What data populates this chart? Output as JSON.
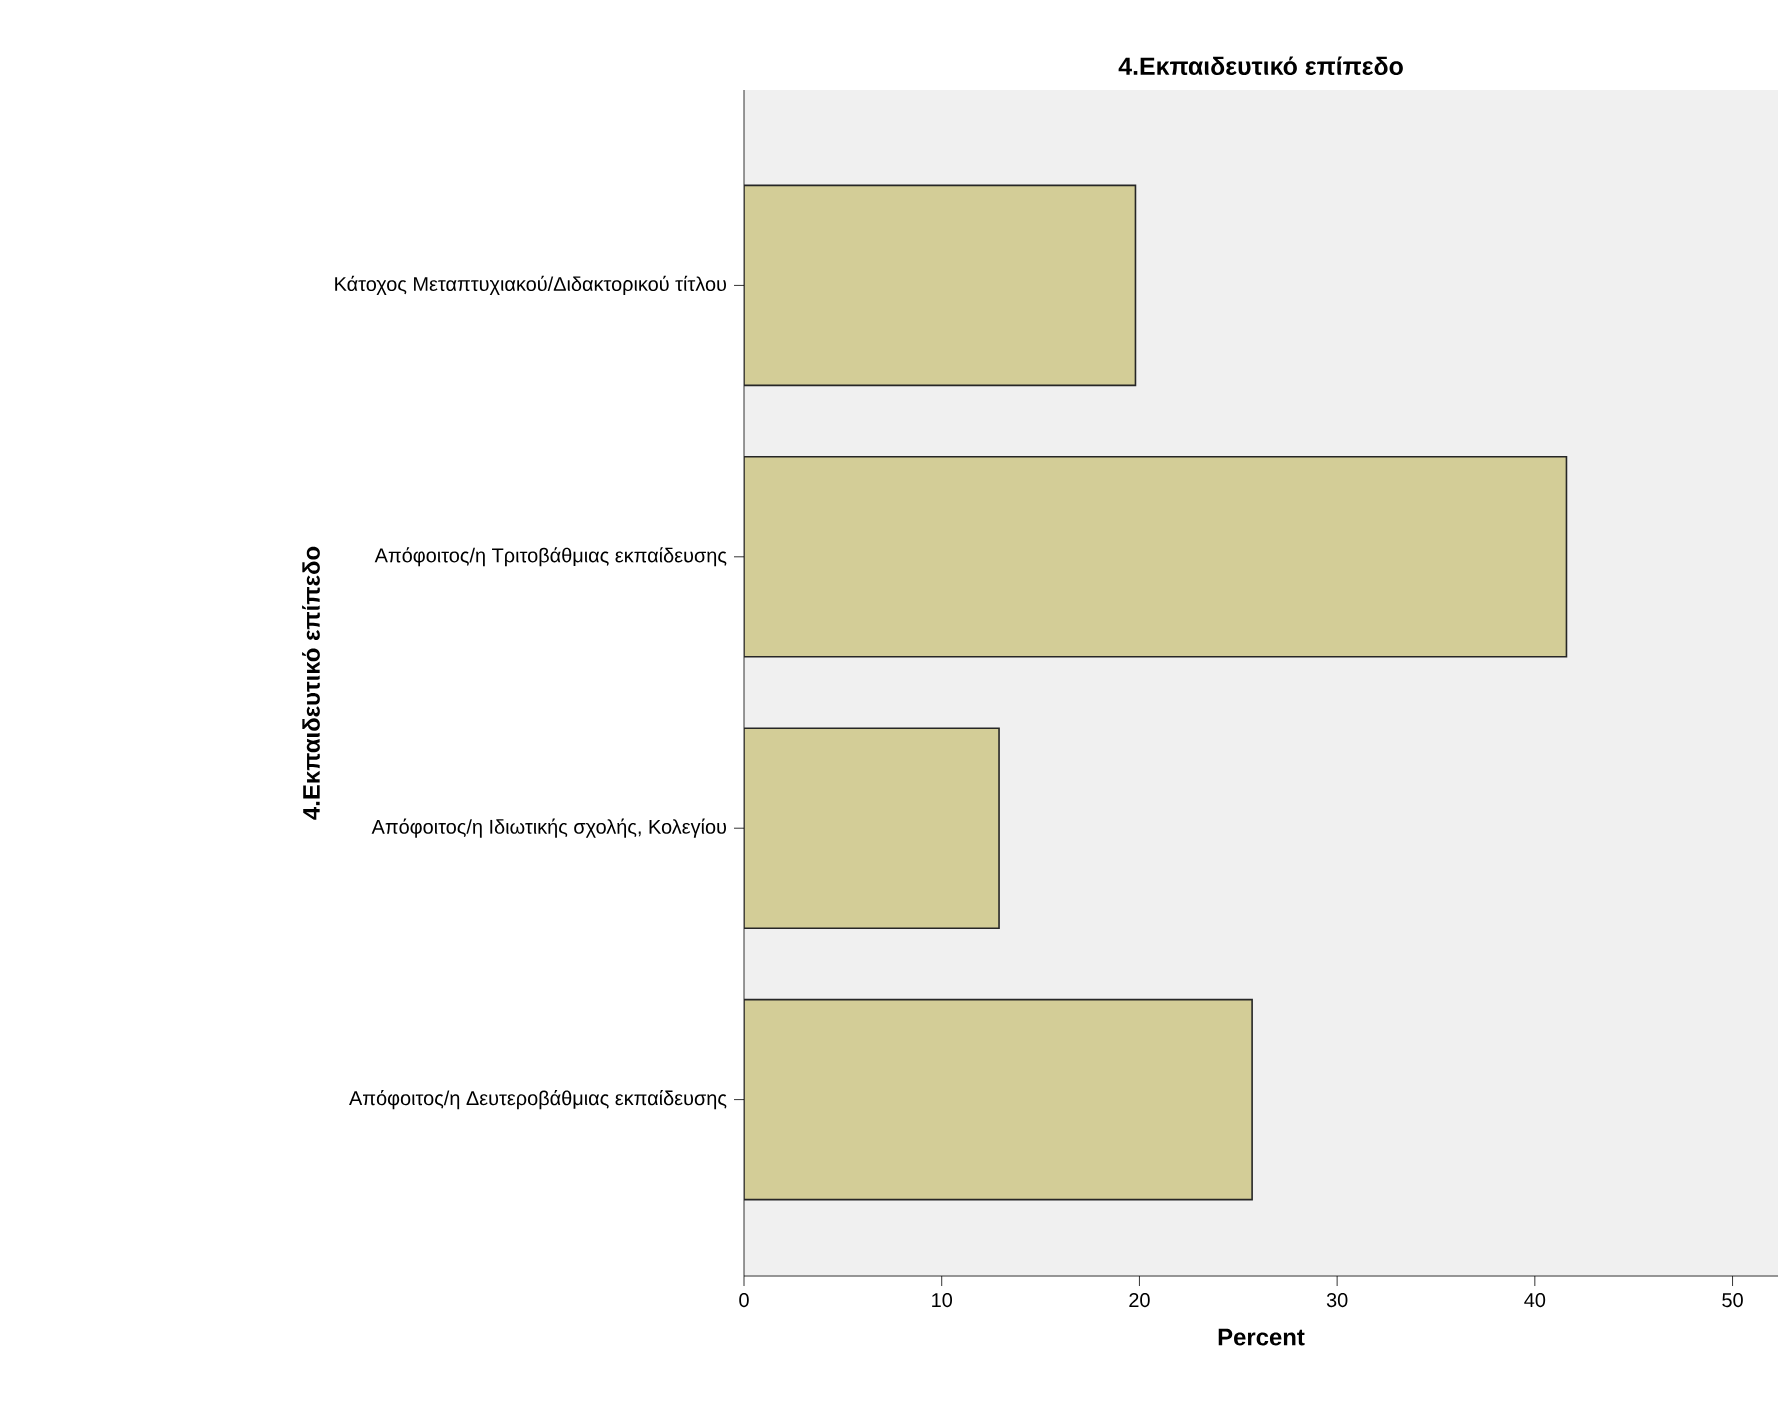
{
  "chart_data": {
    "type": "bar",
    "orientation": "horizontal",
    "title": "4.Εκπαιδευτικό επίπεδο",
    "xlabel": "Percent",
    "ylabel": "4.Εκπαιδευτικό επίπεδο",
    "categories": [
      "Κάτοχος Μεταπτυχιακού/Διδακτορικού τίτλου",
      "Απόφοιτος/η Τριτοβάθμιας εκπαίδευσης",
      "Απόφοιτος/η Ιδιωτικής σχολής, Κολεγίου",
      "Απόφοιτος/η Δευτεροβάθμιας εκπαίδευσης"
    ],
    "values": [
      19.8,
      41.6,
      12.9,
      25.7
    ],
    "color": "#d3cd97",
    "xlim": [
      0,
      52.3
    ],
    "xticks": [
      0,
      10,
      20,
      30,
      40,
      50
    ]
  }
}
